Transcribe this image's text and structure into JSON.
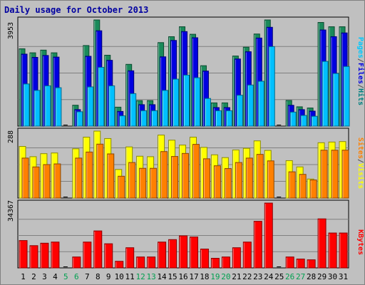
{
  "chart_data": {
    "type": "bar",
    "title": "Daily usage for October 2013",
    "categories": [
      "1",
      "2",
      "3",
      "4",
      "5",
      "6",
      "7",
      "8",
      "9",
      "10",
      "11",
      "12",
      "13",
      "14",
      "15",
      "16",
      "17",
      "18",
      "19",
      "20",
      "21",
      "22",
      "23",
      "24",
      "25",
      "26",
      "27",
      "28",
      "29",
      "30",
      "31"
    ],
    "weekend_days": [
      "5",
      "6",
      "12",
      "13",
      "19",
      "20",
      "26",
      "27"
    ],
    "panels": [
      {
        "id": "hits",
        "max_label": "3953",
        "ylim": [
          0,
          3953
        ],
        "legend": [
          "Pages",
          "/",
          "Files",
          "/",
          "Hits"
        ],
        "legend_colors": [
          "#00c8ff",
          "#505050",
          "#0000e0",
          "#505050",
          "#008080"
        ],
        "series": [
          {
            "name": "Hits",
            "color": "#1a8a5a",
            "values": [
              2880,
              2730,
              2830,
              2730,
              0,
              778,
              3000,
              3953,
              2640,
              706,
              2300,
              949,
              949,
              3110,
              3330,
              3700,
              3420,
              2250,
              866,
              866,
              2610,
              2940,
              3430,
              3953,
              0,
              955,
              719,
              675,
              3860,
              3700,
              3700
            ]
          },
          {
            "name": "Files",
            "color": "#0000e0",
            "values": [
              2680,
              2560,
              2630,
              2570,
              0,
              614,
              2600,
              3550,
              2450,
              546,
              2060,
              798,
              798,
              2580,
              3190,
              3520,
              3290,
              2050,
              690,
              690,
              2500,
              2770,
              3280,
              3680,
              0,
              775,
              613,
              558,
              3580,
              3330,
              3470
            ]
          },
          {
            "name": "Pages",
            "color": "#00c0ff",
            "values": [
              1570,
              1330,
              1500,
              1430,
              0,
              535,
              1460,
              2190,
              1500,
              383,
              1210,
              574,
              574,
              1330,
              1750,
              1900,
              1800,
              1030,
              573,
              573,
              1150,
              1530,
              1670,
              2960,
              0,
              521,
              397,
              366,
              2410,
              1960,
              2220
            ]
          }
        ]
      },
      {
        "id": "visits",
        "max_label": "288",
        "ylim": [
          0,
          288
        ],
        "legend": [
          "Sites",
          "/",
          "Visits"
        ],
        "legend_colors": [
          "#ff8000",
          "#505050",
          "#ffff00"
        ],
        "series": [
          {
            "name": "Visits",
            "color": "#ffff00",
            "values": [
              222,
              178,
              191,
              194,
              0,
              212,
              262,
              288,
              256,
              123,
              220,
              180,
              178,
              271,
              249,
              228,
              262,
              218,
              186,
              174,
              207,
              214,
              246,
              205,
              0,
              161,
              134,
              82,
              238,
              241,
              243
            ]
          },
          {
            "name": "Sites",
            "color": "#ff8000",
            "values": [
              172,
              134,
              144,
              147,
              0,
              172,
              198,
              232,
              190,
              94,
              153,
              128,
              128,
              200,
              179,
              192,
              231,
              169,
              139,
              127,
              153,
              172,
              188,
              160,
              0,
              113,
              102,
              78,
              206,
              206,
              206
            ]
          }
        ]
      },
      {
        "id": "kbytes",
        "max_label": "34367",
        "ylim": [
          0,
          34367
        ],
        "legend": [
          "KBytes"
        ],
        "legend_colors": [
          "#ff0000"
        ],
        "series": [
          {
            "name": "KBytes",
            "color": "#ff0000",
            "values": [
              14500,
              11800,
              13100,
              13700,
              0,
              5800,
              13700,
              19600,
              12800,
              3500,
              10700,
              5800,
              5800,
              13700,
              15000,
              17000,
              16400,
              10000,
              5100,
              5800,
              10700,
              13700,
              24700,
              34367,
              0,
              5800,
              4700,
              4300,
              26000,
              18500,
              18500
            ]
          }
        ]
      }
    ]
  }
}
